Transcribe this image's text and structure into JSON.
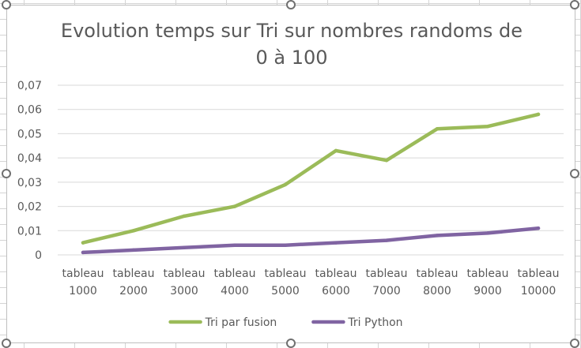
{
  "chart_data": {
    "type": "line",
    "title_line1": "Evolution temps sur Tri sur nombres randoms de",
    "title_line2": "0 à 100",
    "categories": [
      [
        "tableau",
        "1000"
      ],
      [
        "tableau",
        "2000"
      ],
      [
        "tableau",
        "3000"
      ],
      [
        "tableau",
        "4000"
      ],
      [
        "tableau",
        "5000"
      ],
      [
        "tableau",
        "6000"
      ],
      [
        "tableau",
        "7000"
      ],
      [
        "tableau",
        "8000"
      ],
      [
        "tableau",
        "9000"
      ],
      [
        "tableau",
        "10000"
      ]
    ],
    "yticks": [
      "0",
      "0,01",
      "0,02",
      "0,03",
      "0,04",
      "0,05",
      "0,06",
      "0,07"
    ],
    "ylim": [
      0,
      0.07
    ],
    "grid": true,
    "legend_position": "bottom",
    "series": [
      {
        "name": "Tri par fusion",
        "color": "#9bbb59",
        "values": [
          0.005,
          0.01,
          0.016,
          0.02,
          0.029,
          0.043,
          0.039,
          0.052,
          0.053,
          0.058
        ]
      },
      {
        "name": "Tri Python",
        "color": "#8064a2",
        "values": [
          0.001,
          0.002,
          0.003,
          0.004,
          0.004,
          0.005,
          0.006,
          0.008,
          0.009,
          0.011
        ]
      }
    ]
  }
}
